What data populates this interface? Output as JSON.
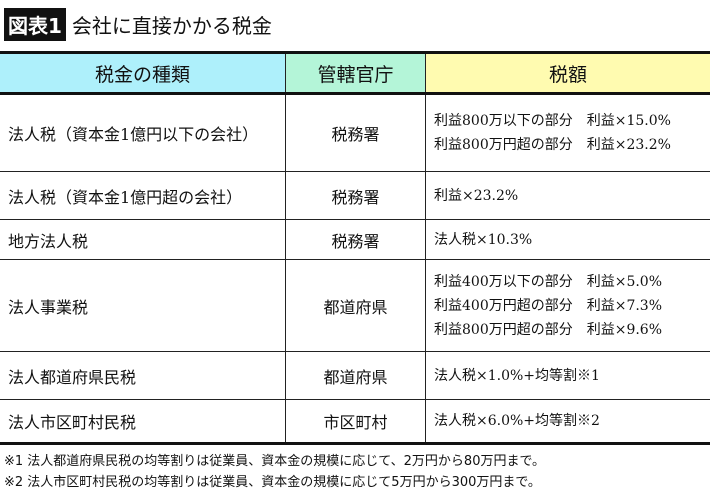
{
  "title": {
    "badge": "図表1",
    "text": "会社に直接かかる税金"
  },
  "headers": [
    "税金の種類",
    "管轄官庁",
    "税額"
  ],
  "rows": [
    {
      "type": "法人税（資本金1億円以下の会社）",
      "office": "税務署",
      "amount": [
        "利益800万以下の部分　利益×15.0%",
        "利益800万円超の部分　利益×23.2%"
      ]
    },
    {
      "type": "法人税（資本金1億円超の会社）",
      "office": "税務署",
      "amount": [
        "利益×23.2%"
      ]
    },
    {
      "type": "地方法人税",
      "office": "税務署",
      "amount": [
        "法人税×10.3%"
      ]
    },
    {
      "type": "法人事業税",
      "office": "都道府県",
      "amount": [
        "利益400万以下の部分　利益×5.0%",
        "利益400万円超の部分　利益×7.3%",
        "利益800万円超の部分　利益×9.6%"
      ]
    },
    {
      "type": "法人都道府県民税",
      "office": "都道府県",
      "amount": [
        "法人税×1.0%+均等割※1"
      ]
    },
    {
      "type": "法人市区町村民税",
      "office": "市区町村",
      "amount": [
        "法人税×6.0%+均等割※2"
      ]
    }
  ],
  "notes": [
    "※1 法人都道府県民税の均等割りは従業員、資本金の規模に応じて、2万円から80万円まで。",
    "※2 法人市区町村民税の均等割りは従業員、資本金の規模に応じて5万円から300万円まで。"
  ]
}
